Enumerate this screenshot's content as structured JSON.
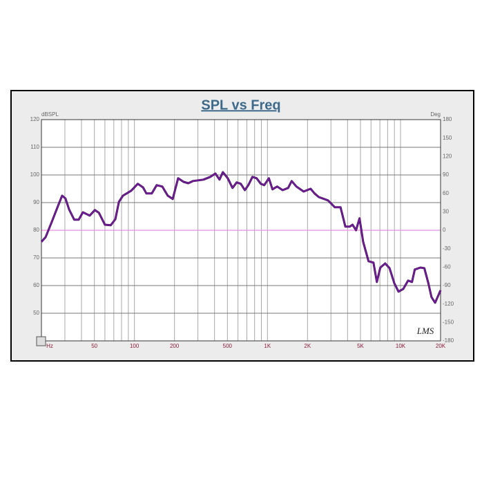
{
  "chart_data": {
    "type": "line",
    "title": "SPL vs Freq",
    "y_label": "dBSPL",
    "y2_label": "Deg",
    "logo": "LMS",
    "xscale": "log",
    "xlim": [
      20,
      20000
    ],
    "ylim": [
      40,
      120
    ],
    "y2lim": [
      -180,
      180
    ],
    "xticks": [
      {
        "value": 20,
        "label": "Hz"
      },
      50,
      100,
      200,
      500,
      {
        "value": 1000,
        "label": "1K"
      },
      {
        "value": 2000,
        "label": "2K"
      },
      {
        "value": 5000,
        "label": "5K"
      },
      {
        "value": 10000,
        "label": "10K"
      },
      {
        "value": 20000,
        "label": "20K"
      }
    ],
    "xgrid": [
      20,
      30,
      40,
      50,
      60,
      70,
      80,
      90,
      100,
      200,
      300,
      400,
      500,
      600,
      700,
      800,
      900,
      1000,
      2000,
      3000,
      4000,
      5000,
      6000,
      7000,
      8000,
      9000,
      10000,
      20000
    ],
    "yticks": [
      50,
      60,
      70,
      80,
      90,
      100,
      110,
      120
    ],
    "ygrid": [
      40,
      50,
      60,
      70,
      80,
      90,
      100,
      110,
      120
    ],
    "y2ticks": [
      -180,
      -150,
      -120,
      -90,
      -60,
      -30,
      0,
      30,
      60,
      90,
      120,
      150,
      180
    ],
    "reference_line": {
      "axis": "y2",
      "value": 0,
      "color": "#e58ee5"
    },
    "x": [
      20,
      21.5,
      24,
      26.6,
      28.6,
      30.3,
      32.3,
      35.3,
      38.1,
      41,
      46.1,
      50.4,
      54.1,
      60,
      66.3,
      71.9,
      76.5,
      82,
      94.6,
      106,
      116,
      123,
      135,
      147,
      162,
      178,
      194,
      213,
      234,
      254,
      276,
      330,
      372,
      406,
      436,
      462,
      503,
      546,
      587,
      630,
      676,
      718,
      771,
      829,
      891,
      945,
      1025,
      1090,
      1182,
      1300,
      1430,
      1520,
      1650,
      1870,
      2110,
      2260,
      2430,
      2850,
      3210,
      3540,
      3850,
      4150,
      4360,
      4630,
      4920,
      5240,
      5750,
      6260,
      6640,
      7050,
      7670,
      8270,
      8990,
      9660,
      10500,
      11400,
      12200,
      12800,
      14100,
      15100,
      16200,
      17100,
      18200,
      20000
    ],
    "series": [
      {
        "color": "#7b1fa2",
        "values": [
          75.8,
          77.5,
          83.2,
          88.7,
          92.5,
          91.5,
          87.5,
          83.8,
          83.8,
          86.5,
          85.3,
          87.3,
          86.3,
          82,
          81.8,
          84,
          90.3,
          92.5,
          94.3,
          96.8,
          95.5,
          93.3,
          93.3,
          96.3,
          95.8,
          92.5,
          91.3,
          98.8,
          97.5,
          97,
          97.8,
          98.3,
          99.3,
          100.5,
          98.3,
          101,
          98.8,
          95.3,
          97.3,
          96.8,
          94.5,
          96.3,
          99.3,
          98.8,
          96.8,
          96.3,
          98.8,
          94.8,
          95.8,
          94.5,
          95.3,
          97.8,
          95.8,
          94,
          95,
          93.3,
          92,
          90.8,
          88.3,
          88.3,
          81.3,
          81.3,
          82,
          80,
          84.3,
          75.8,
          68.8,
          68.3,
          61.3,
          66.5,
          68,
          66.3,
          60.8,
          57.8,
          58.8,
          61.8,
          61.3,
          65.8,
          66.5,
          66.3,
          60.8,
          55.8,
          53.8,
          58.3
        ]
      }
    ]
  }
}
